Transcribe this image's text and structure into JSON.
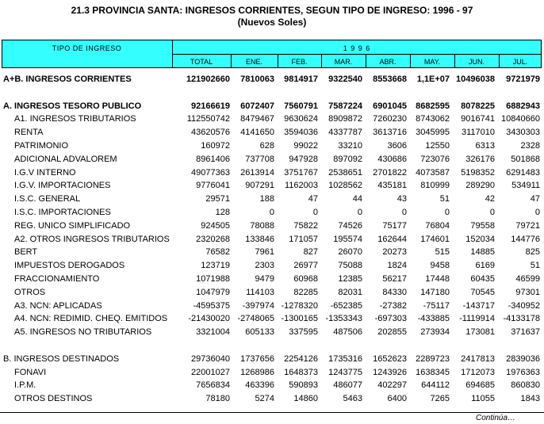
{
  "title": "21.3  PROVINCIA SANTA: INGRESOS CORRIENTES, SEGUN TIPO DE INGRESO:  1996 - 97",
  "subtitle": "(Nuevos Soles)",
  "footer": "Continúa…",
  "table": {
    "header": {
      "row_label": "TIPO DE INGRESO",
      "year": "1 9 9 6",
      "columns": [
        "TOTAL",
        "ENE.",
        "FEB.",
        "MAR.",
        "ABR.",
        "MAY.",
        "JUN.",
        "JUL."
      ]
    },
    "sections": [
      [
        {
          "label": "A+B. INGRESOS CORRIENTES",
          "bold": true,
          "values": [
            "121902660",
            "7810063",
            "9814917",
            "9322540",
            "8553668",
            "1,1E+07",
            "10496038",
            "9721979"
          ]
        }
      ],
      [
        {
          "label": "A. INGRESOS TESORO PUBLICO",
          "bold": true,
          "values": [
            "92166619",
            "6072407",
            "7560791",
            "7587224",
            "6901045",
            "8682595",
            "8078225",
            "6882943"
          ]
        },
        {
          "label": "A1. INGRESOS TRIBUTARIOS",
          "values": [
            "112550742",
            "8479467",
            "9630624",
            "8909872",
            "7260230",
            "8743062",
            "9016741",
            "10840660"
          ]
        },
        {
          "label": "RENTA",
          "values": [
            "43620576",
            "4141650",
            "3594036",
            "4337787",
            "3613716",
            "3045995",
            "3117010",
            "3430303"
          ]
        },
        {
          "label": "PATRIMONIO",
          "values": [
            "160972",
            "628",
            "99022",
            "33210",
            "3606",
            "12550",
            "6313",
            "2328"
          ]
        },
        {
          "label": "ADICIONAL ADVALOREM",
          "values": [
            "8961406",
            "737708",
            "947928",
            "897092",
            "430686",
            "723076",
            "326176",
            "501868"
          ]
        },
        {
          "label": "I.G.V INTERNO",
          "values": [
            "49077363",
            "2613914",
            "3751767",
            "2538651",
            "2701822",
            "4073587",
            "5198352",
            "6291483"
          ]
        },
        {
          "label": "I.G.V. IMPORTACIONES",
          "values": [
            "9776041",
            "907291",
            "1162003",
            "1028562",
            "435181",
            "810999",
            "289290",
            "534911"
          ]
        },
        {
          "label": "I.S.C. GENERAL",
          "values": [
            "29571",
            "188",
            "47",
            "44",
            "43",
            "51",
            "42",
            "47"
          ]
        },
        {
          "label": "I.S.C. IMPORTACIONES",
          "values": [
            "128",
            "0",
            "0",
            "0",
            "0",
            "0",
            "0",
            "0"
          ]
        },
        {
          "label": "REG. UNICO SIMPLIFICADO",
          "values": [
            "924505",
            "78088",
            "75822",
            "74526",
            "75177",
            "76804",
            "79558",
            "79721"
          ]
        },
        {
          "label": "A2. OTROS INGRESOS TRIBUTARIOS",
          "values": [
            "2320268",
            "133846",
            "171057",
            "195574",
            "162644",
            "174601",
            "152034",
            "144776"
          ]
        },
        {
          "label": "BERT",
          "values": [
            "76582",
            "7961",
            "827",
            "26070",
            "20273",
            "515",
            "14885",
            "825"
          ]
        },
        {
          "label": "IMPUESTOS DEROGADOS",
          "values": [
            "123719",
            "2303",
            "26977",
            "75088",
            "1824",
            "9458",
            "6169",
            "51"
          ]
        },
        {
          "label": "FRACCIONAMIENTO",
          "values": [
            "1071988",
            "9479",
            "60968",
            "12385",
            "56217",
            "17448",
            "60435",
            "46599"
          ]
        },
        {
          "label": "OTROS",
          "values": [
            "1047979",
            "114103",
            "82285",
            "82031",
            "84330",
            "147180",
            "70545",
            "97301"
          ]
        },
        {
          "label": "A3. NCN: APLICADAS",
          "values": [
            "-4595375",
            "-397974",
            "-1278320",
            "-652385",
            "-27382",
            "-75117",
            "-143717",
            "-340952"
          ]
        },
        {
          "label": "A4. NCN: REDIMID. CHEQ. EMITIDOS",
          "values": [
            "-21430020",
            "-2748065",
            "-1300165",
            "-1353343",
            "-697303",
            "-433885",
            "-1119914",
            "-4133178"
          ]
        },
        {
          "label": "A5. INGRESOS NO TRIBUTARIOS",
          "values": [
            "3321004",
            "605133",
            "337595",
            "487506",
            "202855",
            "273934",
            "173081",
            "371637"
          ]
        }
      ],
      [
        {
          "label": "B. INGRESOS DESTINADOS",
          "values": [
            "29736040",
            "1737656",
            "2254126",
            "1735316",
            "1652623",
            "2289723",
            "2417813",
            "2839036"
          ]
        },
        {
          "label": "FONAVI",
          "values": [
            "22001027",
            "1268986",
            "1648373",
            "1243775",
            "1243926",
            "1638345",
            "1712073",
            "1976363"
          ]
        },
        {
          "label": "I.P.M.",
          "values": [
            "7656834",
            "463396",
            "590893",
            "486077",
            "402297",
            "644112",
            "694685",
            "860830"
          ]
        },
        {
          "label": "OTROS DESTINOS",
          "values": [
            "78180",
            "5274",
            "14860",
            "5463",
            "6400",
            "7265",
            "11055",
            "1843"
          ]
        }
      ]
    ]
  }
}
